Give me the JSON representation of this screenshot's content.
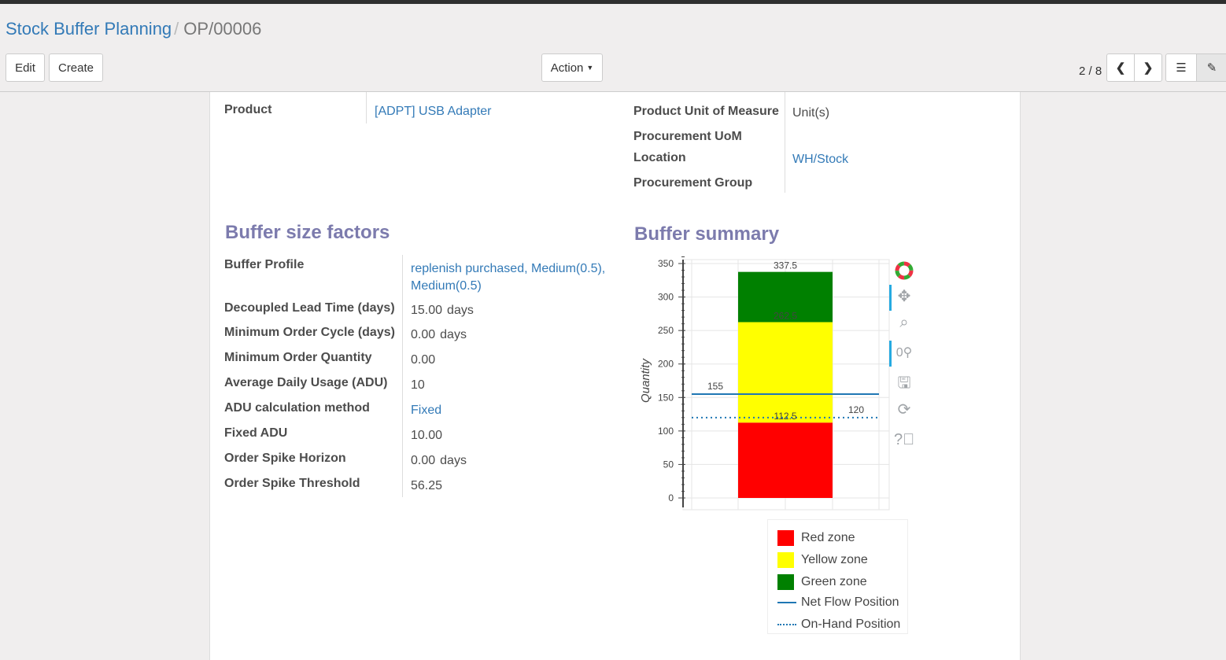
{
  "breadcrumb": {
    "parent": "Stock Buffer Planning",
    "current": "OP/00006"
  },
  "toolbar": {
    "edit": "Edit",
    "create": "Create",
    "action": "Action",
    "pager": "2 / 8"
  },
  "form": {
    "product_label": "Product",
    "product_value": "[ADPT] USB Adapter",
    "uom_label": "Product Unit of Measure",
    "uom_value": "Unit(s)",
    "proc_uom_label": "Procurement UoM",
    "location_label": "Location",
    "location_value": "WH/Stock",
    "proc_group_label": "Procurement Group"
  },
  "factors": {
    "title": "Buffer size factors",
    "rows": [
      {
        "label": "Buffer Profile",
        "value": "replenish purchased, Medium(0.5), Medium(0.5)",
        "link": true
      },
      {
        "label": "Decoupled Lead Time (days)",
        "value": "15.00",
        "unit": "days"
      },
      {
        "label": "Minimum Order Cycle (days)",
        "value": "0.00",
        "unit": "days"
      },
      {
        "label": "Minimum Order Quantity",
        "value": "0.00"
      },
      {
        "label": "Average Daily Usage (ADU)",
        "value": "10"
      },
      {
        "label": "ADU calculation method",
        "value": "Fixed",
        "link": true
      },
      {
        "label": "Fixed ADU",
        "value": "10.00"
      },
      {
        "label": "Order Spike Horizon",
        "value": "0.00",
        "unit": "days"
      },
      {
        "label": "Order Spike Threshold",
        "value": "56.25"
      }
    ]
  },
  "summary": {
    "title": "Buffer summary"
  },
  "chart_data": {
    "type": "bar",
    "stacked": true,
    "ylabel": "Quantity",
    "ylim": [
      0,
      350
    ],
    "yticks": [
      0,
      50,
      100,
      150,
      200,
      250,
      300,
      350
    ],
    "zones": [
      {
        "name": "Red zone",
        "bottom": 0,
        "top": 112.5,
        "color": "#ff0000",
        "label": "112.5"
      },
      {
        "name": "Yellow zone",
        "bottom": 112.5,
        "top": 262.5,
        "color": "#ffff00",
        "label": "262.5"
      },
      {
        "name": "Green zone",
        "bottom": 262.5,
        "top": 337.5,
        "color": "#008000",
        "label": "337.5"
      }
    ],
    "lines": [
      {
        "name": "Net Flow Position",
        "value": 155,
        "style": "solid",
        "color": "#1f77b4",
        "label": "155"
      },
      {
        "name": "On-Hand Position",
        "value": 120,
        "style": "dotted",
        "color": "#1f77b4",
        "label": "120"
      }
    ],
    "grid": true,
    "legend": "bottom"
  }
}
